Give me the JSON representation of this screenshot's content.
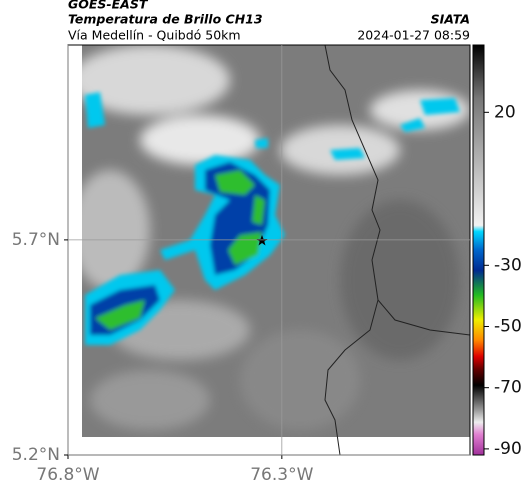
{
  "header": {
    "satellite": "GOES-EAST",
    "product": "Temperatura de Brillo CH13",
    "route": "Vía Medellín - Quibdó 50km",
    "source": "SIATA",
    "datetime": "2024-01-27 08:59"
  },
  "map": {
    "xlim": [
      -76.8,
      -75.86
    ],
    "ylim": [
      5.2,
      6.153
    ],
    "xticks": [
      {
        "value": -76.8,
        "label": "76.8°W"
      },
      {
        "value": -76.3,
        "label": "76.3°W"
      }
    ],
    "yticks": [
      {
        "value": 5.2,
        "label": "5.2°N"
      },
      {
        "value": 5.7,
        "label": "5.7°N"
      }
    ],
    "grid": true
  },
  "colorbar": {
    "lim": [
      42,
      -92
    ],
    "ticks": [
      20,
      -30,
      -50,
      -70,
      -90
    ]
  }
}
